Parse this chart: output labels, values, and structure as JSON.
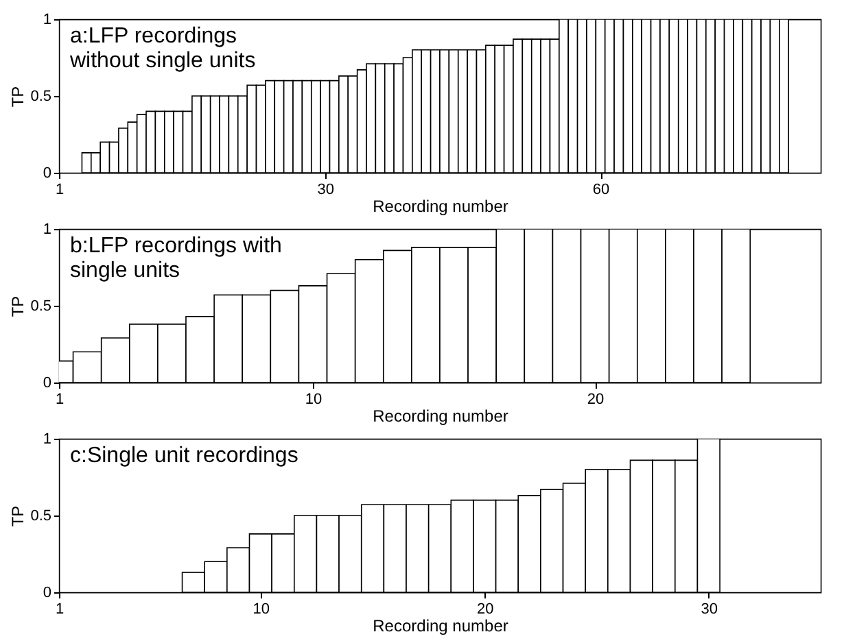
{
  "chart_data": [
    {
      "type": "bar",
      "title": "a:LFP recordings\nwithout single units",
      "xlabel": "Recording number",
      "ylabel": "TP",
      "color": "#ffffff",
      "x": [
        4,
        5,
        6,
        7,
        8,
        9,
        10,
        11,
        12,
        13,
        14,
        15,
        16,
        17,
        18,
        19,
        20,
        21,
        22,
        23,
        24,
        25,
        26,
        27,
        28,
        29,
        30,
        31,
        32,
        33,
        34,
        35,
        36,
        37,
        38,
        39,
        40,
        41,
        42,
        43,
        44,
        45,
        46,
        47,
        48,
        49,
        50,
        51,
        52,
        53,
        54,
        55,
        56,
        57,
        58,
        59,
        60,
        61,
        62,
        63,
        64,
        65,
        66,
        67,
        68,
        69,
        70,
        71,
        72,
        73,
        74,
        75,
        76,
        77,
        78,
        79,
        80
      ],
      "values": [
        0.13,
        0.13,
        0.2,
        0.2,
        0.29,
        0.33,
        0.38,
        0.4,
        0.4,
        0.4,
        0.4,
        0.4,
        0.5,
        0.5,
        0.5,
        0.5,
        0.5,
        0.5,
        0.57,
        0.57,
        0.6,
        0.6,
        0.6,
        0.6,
        0.6,
        0.6,
        0.6,
        0.6,
        0.63,
        0.63,
        0.67,
        0.71,
        0.71,
        0.71,
        0.71,
        0.75,
        0.8,
        0.8,
        0.8,
        0.8,
        0.8,
        0.8,
        0.8,
        0.8,
        0.83,
        0.83,
        0.83,
        0.87,
        0.87,
        0.87,
        0.87,
        0.87,
        1,
        1,
        1,
        1,
        1,
        1,
        1,
        1,
        1,
        1,
        1,
        1,
        1,
        1,
        1,
        1,
        1,
        1,
        1,
        1,
        1,
        1,
        1,
        1,
        1
      ],
      "xlim": [
        1,
        84
      ],
      "xticks": [
        1,
        30,
        60
      ],
      "ylim": [
        0,
        1
      ],
      "yticks": [
        0,
        0.5,
        1
      ]
    },
    {
      "type": "bar",
      "title": "b:LFP recordings with\nsingle units",
      "xlabel": "Recording number",
      "ylabel": "TP",
      "color": "#ffffff",
      "x": [
        1,
        2,
        3,
        4,
        5,
        6,
        7,
        8,
        9,
        10,
        11,
        12,
        13,
        14,
        15,
        16,
        17,
        18,
        19,
        20,
        21,
        22,
        23,
        24,
        25
      ],
      "values": [
        0.14,
        0.2,
        0.29,
        0.38,
        0.38,
        0.43,
        0.57,
        0.57,
        0.6,
        0.63,
        0.71,
        0.8,
        0.86,
        0.88,
        0.88,
        0.88,
        1,
        1,
        1,
        1,
        1,
        1,
        1,
        1,
        1
      ],
      "xlim": [
        1,
        28
      ],
      "xticks": [
        1,
        10,
        20
      ],
      "ylim": [
        0,
        1
      ],
      "yticks": [
        0,
        0.5,
        1
      ]
    },
    {
      "type": "bar",
      "title": "c:Single unit recordings",
      "xlabel": "Recording number",
      "ylabel": "TP",
      "color": "#ffffff",
      "x": [
        7,
        8,
        9,
        10,
        11,
        12,
        13,
        14,
        15,
        16,
        17,
        18,
        19,
        20,
        21,
        22,
        23,
        24,
        25,
        26,
        27,
        28,
        29,
        30
      ],
      "values": [
        0.13,
        0.2,
        0.29,
        0.38,
        0.38,
        0.5,
        0.5,
        0.5,
        0.57,
        0.57,
        0.57,
        0.57,
        0.6,
        0.6,
        0.6,
        0.63,
        0.67,
        0.71,
        0.8,
        0.8,
        0.86,
        0.86,
        0.86,
        1
      ],
      "xlim": [
        1,
        35
      ],
      "xticks": [
        1,
        10,
        20,
        30
      ],
      "ylim": [
        0,
        1
      ],
      "yticks": [
        0,
        0.5,
        1
      ]
    }
  ]
}
